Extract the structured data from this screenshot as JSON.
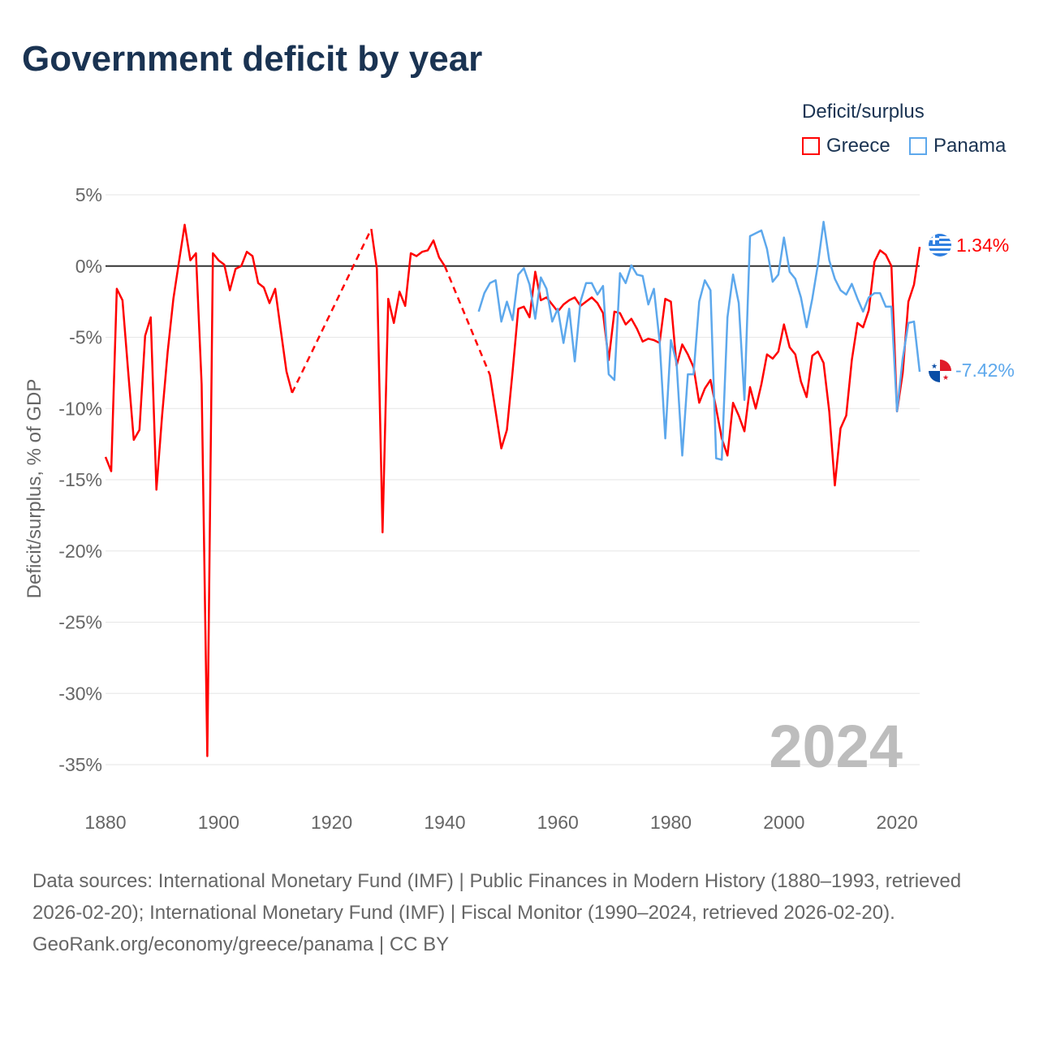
{
  "title": "Government deficit by year",
  "legend": {
    "title": "Deficit/surplus",
    "items": [
      {
        "name": "Greece",
        "color": "#ff0000"
      },
      {
        "name": "Panama",
        "color": "#5da8ec"
      }
    ]
  },
  "year_watermark": "2024",
  "end_labels": {
    "greece": "1.34%",
    "panama": "-7.42%"
  },
  "chart_data": {
    "type": "line",
    "title": "Government deficit by year",
    "xlabel": "",
    "ylabel": "Deficit/surplus, % of GDP",
    "xlim": [
      1880,
      2024
    ],
    "ylim": [
      -35,
      5
    ],
    "xticks": [
      1880,
      1900,
      1920,
      1940,
      1960,
      1980,
      2000,
      2020
    ],
    "xtick_labels": [
      "1880",
      "1900",
      "1920",
      "1940",
      "1960",
      "1980",
      "2000",
      "2020"
    ],
    "yticks": [
      5,
      0,
      -5,
      -10,
      -15,
      -20,
      -25,
      -30,
      -35
    ],
    "ytick_labels": [
      "5%",
      "0%",
      "-5%",
      "-10%",
      "-15%",
      "-20%",
      "-25%",
      "-30%",
      "-35%"
    ],
    "grid": true,
    "legend_position": "top-right",
    "series": [
      {
        "name": "Greece",
        "color": "#ff0000",
        "start_year": 1880,
        "values": [
          -13.4,
          -14.4,
          -1.6,
          -2.4,
          -7.4,
          -12.2,
          -11.5,
          -4.9,
          -3.6,
          -15.7,
          -10.5,
          -6.0,
          -2.3,
          0.3,
          2.9,
          0.4,
          0.9,
          -8.3,
          -34.4,
          0.9,
          0.4,
          0.1,
          -1.7,
          -0.2,
          0.0,
          1.0,
          0.7,
          -1.2,
          -1.5,
          -2.6,
          -1.6,
          -4.5,
          -7.4,
          -8.9,
          null,
          null,
          null,
          null,
          null,
          null,
          null,
          null,
          null,
          null,
          null,
          null,
          null,
          2.6,
          -0.2,
          -18.7,
          -2.3,
          -4.0,
          -1.8,
          -2.8,
          0.9,
          0.7,
          1.0,
          1.1,
          1.8,
          0.6,
          0.0,
          null,
          null,
          null,
          null,
          null,
          null,
          null,
          -7.65,
          -10.2,
          -12.8,
          -11.5,
          -7.4,
          -3.0,
          -2.85,
          -3.6,
          -0.4,
          -2.4,
          -2.2,
          -2.7,
          -3.2,
          -2.7,
          -2.4,
          -2.2,
          -2.8,
          -2.5,
          -2.2,
          -2.6,
          -3.3,
          -6.6,
          -3.2,
          -3.3,
          -4.1,
          -3.7,
          -4.4,
          -5.3,
          -5.1,
          -5.2,
          -5.4,
          -2.3,
          -2.5,
          -7.0,
          -5.5,
          -6.2,
          -7.1,
          -9.6,
          -8.6,
          -8.0,
          -10.0,
          -12.1,
          -13.3,
          -9.6,
          -10.5,
          -11.6,
          -8.5,
          -10.0,
          -8.3,
          -6.2,
          -6.5,
          -6.0,
          -4.1,
          -5.7,
          -6.2,
          -8.1,
          -9.2,
          -6.3,
          -6.0,
          -6.8,
          -10.2,
          -15.4,
          -11.4,
          -10.5,
          -6.6,
          -4.0,
          -4.3,
          -3.1,
          0.3,
          1.1,
          0.8,
          0.0,
          -10.2,
          -7.5,
          -2.5,
          -1.3,
          1.34
        ]
      },
      {
        "name": "Panama",
        "color": "#5da8ec",
        "start_year": 1946,
        "values": [
          -3.2,
          -1.9,
          -1.2,
          -1.0,
          -3.9,
          -2.5,
          -3.8,
          -0.6,
          -0.15,
          -1.3,
          -3.7,
          -0.8,
          -1.6,
          -3.9,
          -3.0,
          -5.4,
          -3.0,
          -6.7,
          -2.5,
          -1.2,
          -1.2,
          -2.0,
          -1.4,
          -7.6,
          -8.0,
          -0.5,
          -1.2,
          0.05,
          -0.6,
          -0.7,
          -2.7,
          -1.6,
          -5.3,
          -12.1,
          -5.2,
          -6.8,
          -13.3,
          -7.6,
          -7.6,
          -2.5,
          -1.0,
          -1.7,
          -13.5,
          -13.6,
          -3.6,
          -0.6,
          -2.6,
          -9.4,
          2.1,
          2.3,
          2.5,
          1.2,
          -1.1,
          -0.6,
          2.0,
          -0.4,
          -0.9,
          -2.2,
          -4.3,
          -2.3,
          0.1,
          3.1,
          0.4,
          -0.9,
          -1.7,
          -2.0,
          -1.25,
          -2.3,
          -3.2,
          -2.2,
          -1.9,
          -1.9,
          -2.85,
          -2.85,
          -10.2,
          -6.5,
          -4.0,
          -3.9,
          -7.42
        ]
      }
    ]
  },
  "footer": {
    "sources": "Data sources: International Monetary Fund (IMF) | Public Finances in Modern History (1880–1993, retrieved 2026-02-20); International Monetary Fund (IMF) | Fiscal Monitor (1990–2024, retrieved 2026-02-20).",
    "credit": "GeoRank.org/economy/greece/panama | CC BY"
  }
}
